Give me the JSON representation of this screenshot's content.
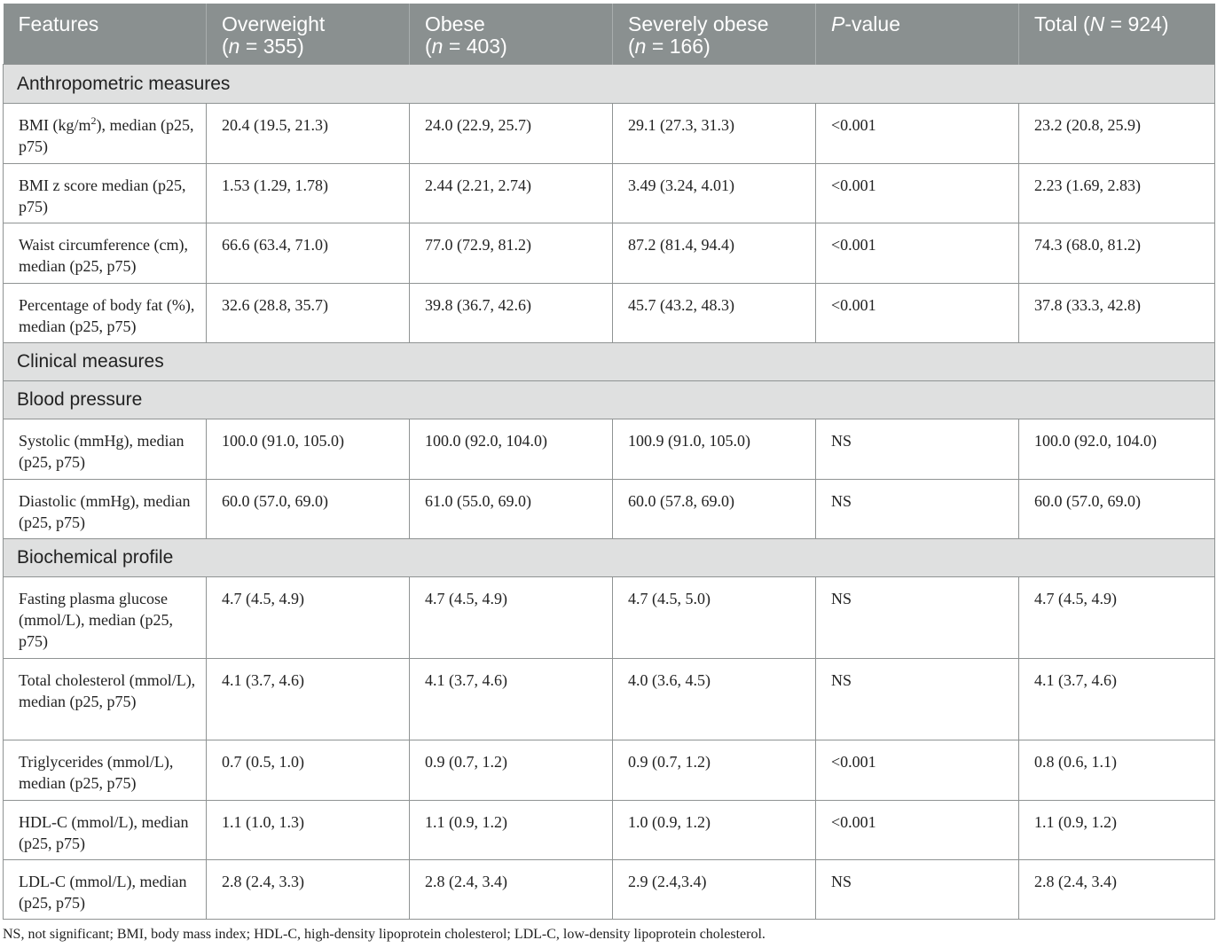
{
  "header": {
    "features": "Features",
    "overweight": "Overweight",
    "overweight_n": "355",
    "obese": "Obese",
    "obese_n": "403",
    "severely_obese": "Severely obese",
    "severely_obese_n": "166",
    "pvalue_p": "P",
    "pvalue_rest": "-value",
    "total": "Total",
    "total_n": "924"
  },
  "sections": {
    "anthropometric": "Anthropometric measures",
    "clinical": "Clinical measures",
    "blood_pressure": "Blood pressure",
    "biochemical": "Biochemical profile"
  },
  "rows": {
    "bmi": {
      "feature_a": "BMI (kg/m",
      "feature_sup": "2",
      "feature_b": "), median (p25, p75)",
      "overweight": "20.4 (19.5, 21.3)",
      "obese": "24.0 (22.9, 25.7)",
      "severely_obese": "29.1 (27.3, 31.3)",
      "pvalue": "<0.001",
      "total": "23.2 (20.8, 25.9)"
    },
    "bmi_z": {
      "feature": "BMI z score median (p25, p75)",
      "overweight": "1.53 (1.29, 1.78)",
      "obese": "2.44 (2.21, 2.74)",
      "severely_obese": "3.49 (3.24, 4.01)",
      "pvalue": "<0.001",
      "total": "2.23 (1.69, 2.83)"
    },
    "waist": {
      "feature": "Waist circumference (cm), median (p25, p75)",
      "overweight": "66.6 (63.4, 71.0)",
      "obese": "77.0 (72.9, 81.2)",
      "severely_obese": "87.2 (81.4, 94.4)",
      "pvalue": "<0.001",
      "total": "74.3 (68.0, 81.2)"
    },
    "body_fat": {
      "feature": "Percentage of body fat (%), median (p25, p75)",
      "overweight": "32.6 (28.8, 35.7)",
      "obese": "39.8 (36.7, 42.6)",
      "severely_obese": "45.7 (43.2, 48.3)",
      "pvalue": "<0.001",
      "total": "37.8 (33.3, 42.8)"
    },
    "systolic": {
      "feature": "Systolic (mmHg), median (p25, p75)",
      "overweight": "100.0 (91.0, 105.0)",
      "obese": "100.0 (92.0, 104.0)",
      "severely_obese": "100.9 (91.0, 105.0)",
      "pvalue": "NS",
      "total": "100.0 (92.0, 104.0)"
    },
    "diastolic": {
      "feature": "Diastolic (mmHg), median (p25, p75)",
      "overweight": "60.0 (57.0, 69.0)",
      "obese": "61.0 (55.0, 69.0)",
      "severely_obese": "60.0 (57.8, 69.0)",
      "pvalue": "NS",
      "total": "60.0 (57.0, 69.0)"
    },
    "glucose": {
      "feature": "Fasting plasma glucose (mmol/L), median (p25, p75)",
      "overweight": "4.7 (4.5, 4.9)",
      "obese": "4.7 (4.5, 4.9)",
      "severely_obese": "4.7 (4.5, 5.0)",
      "pvalue": "NS",
      "total": "4.7 (4.5, 4.9)"
    },
    "cholesterol": {
      "feature": "Total cholesterol (mmol/L), median (p25, p75)",
      "overweight": "4.1 (3.7, 4.6)",
      "obese": "4.1 (3.7, 4.6)",
      "severely_obese": "4.0 (3.6, 4.5)",
      "pvalue": "NS",
      "total": "4.1 (3.7, 4.6)"
    },
    "triglycerides": {
      "feature": "Triglycerides (mmol/L), median (p25, p75)",
      "overweight": "0.7 (0.5, 1.0)",
      "obese": "0.9 (0.7, 1.2)",
      "severely_obese": "0.9 (0.7, 1.2)",
      "pvalue": "<0.001",
      "total": "0.8 (0.6, 1.1)"
    },
    "hdl": {
      "feature": "HDL-C (mmol/L), median (p25, p75)",
      "overweight": "1.1 (1.0, 1.3)",
      "obese": "1.1 (0.9, 1.2)",
      "severely_obese": "1.0 (0.9, 1.2)",
      "pvalue": "<0.001",
      "total": "1.1 (0.9, 1.2)"
    },
    "ldl": {
      "feature": "LDL-C (mmol/L), median (p25, p75)",
      "overweight": "2.8 (2.4, 3.3)",
      "obese": "2.8 (2.4, 3.4)",
      "severely_obese": "2.9 (2.4,3.4)",
      "pvalue": "NS",
      "total": "2.8 (2.4, 3.4)"
    }
  },
  "footnote": "NS, not significant; BMI, body mass index; HDL-C, high-density lipoprotein cholesterol; LDL-C, low-density lipoprotein cholesterol."
}
